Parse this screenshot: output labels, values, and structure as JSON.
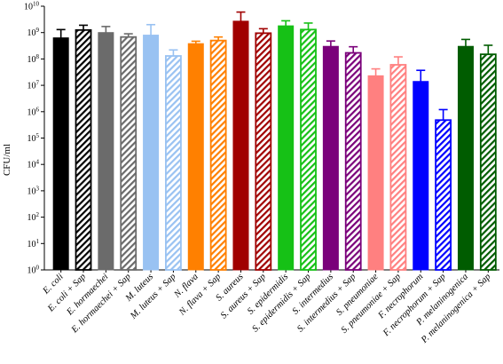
{
  "chart_data": {
    "type": "bar",
    "ylabel": "CFU/ml",
    "y_scale": "log10",
    "ylim": [
      1,
      10000000000
    ],
    "y_ticks": [
      {
        "exp": 0,
        "label": "10",
        "sup": "0"
      },
      {
        "exp": 1,
        "label": "10",
        "sup": "1"
      },
      {
        "exp": 2,
        "label": "10",
        "sup": "2"
      },
      {
        "exp": 3,
        "label": "10",
        "sup": "3"
      },
      {
        "exp": 4,
        "label": "10",
        "sup": "4"
      },
      {
        "exp": 5,
        "label": "10",
        "sup": "5"
      },
      {
        "exp": 6,
        "label": "10",
        "sup": "6"
      },
      {
        "exp": 7,
        "label": "10",
        "sup": "7"
      },
      {
        "exp": 8,
        "label": "10",
        "sup": "8"
      },
      {
        "exp": 9,
        "label": "10",
        "sup": "9"
      },
      {
        "exp": 10,
        "label": "10",
        "sup": "10"
      }
    ],
    "bars": [
      {
        "category": "E. coli",
        "value": 630000000,
        "error_upper": 1300000000,
        "color": "#000000",
        "hatched": false
      },
      {
        "category": "E. coli + Sap",
        "value": 1250000000,
        "error_upper": 1900000000,
        "color": "#000000",
        "hatched": true
      },
      {
        "category": "E. hormaechei",
        "value": 1000000000,
        "error_upper": 1700000000,
        "color": "#6b6b6b",
        "hatched": false
      },
      {
        "category": "E. hormaechei + Sap",
        "value": 680000000,
        "error_upper": 900000000,
        "color": "#6b6b6b",
        "hatched": true
      },
      {
        "category": "M. luteus",
        "value": 800000000,
        "error_upper": 2000000000,
        "color": "#99c2f2",
        "hatched": false
      },
      {
        "category": "M. luteus + Sap",
        "value": 130000000,
        "error_upper": 220000000,
        "color": "#99c2f2",
        "hatched": true
      },
      {
        "category": "N. flava",
        "value": 380000000,
        "error_upper": 470000000,
        "color": "#ff8000",
        "hatched": false
      },
      {
        "category": "N. flava + Sap",
        "value": 500000000,
        "error_upper": 680000000,
        "color": "#ff8000",
        "hatched": true
      },
      {
        "category": "S. aureus",
        "value": 2700000000,
        "error_upper": 6000000000,
        "color": "#a00000",
        "hatched": false
      },
      {
        "category": "S. aureus + Sap",
        "value": 950000000,
        "error_upper": 1400000000,
        "color": "#a00000",
        "hatched": true
      },
      {
        "category": "S. epidermidis",
        "value": 1800000000,
        "error_upper": 2800000000,
        "color": "#16c116",
        "hatched": false
      },
      {
        "category": "S. epidermidis + Sap",
        "value": 1300000000,
        "error_upper": 2300000000,
        "color": "#16c116",
        "hatched": true
      },
      {
        "category": "S. intermedius",
        "value": 300000000,
        "error_upper": 480000000,
        "color": "#7a007a",
        "hatched": false
      },
      {
        "category": "S. intermedius + Sap",
        "value": 170000000,
        "error_upper": 290000000,
        "color": "#7a007a",
        "hatched": true
      },
      {
        "category": "S. pneumoniae",
        "value": 23000000,
        "error_upper": 42000000,
        "color": "#ff8080",
        "hatched": false
      },
      {
        "category": "S. pneumoniae + Sap",
        "value": 60000000,
        "error_upper": 120000000,
        "color": "#ff8080",
        "hatched": true
      },
      {
        "category": "F. necrophorum",
        "value": 14000000,
        "error_upper": 37000000,
        "color": "#0000ff",
        "hatched": false
      },
      {
        "category": "F. necrophorum + Sap",
        "value": 480000,
        "error_upper": 1200000,
        "color": "#0000ff",
        "hatched": true
      },
      {
        "category": "P. melaninogenica",
        "value": 300000000,
        "error_upper": 550000000,
        "color": "#005c00",
        "hatched": false
      },
      {
        "category": "P. melaninogenica + Sap",
        "value": 150000000,
        "error_upper": 330000000,
        "color": "#005c00",
        "hatched": true
      }
    ]
  }
}
